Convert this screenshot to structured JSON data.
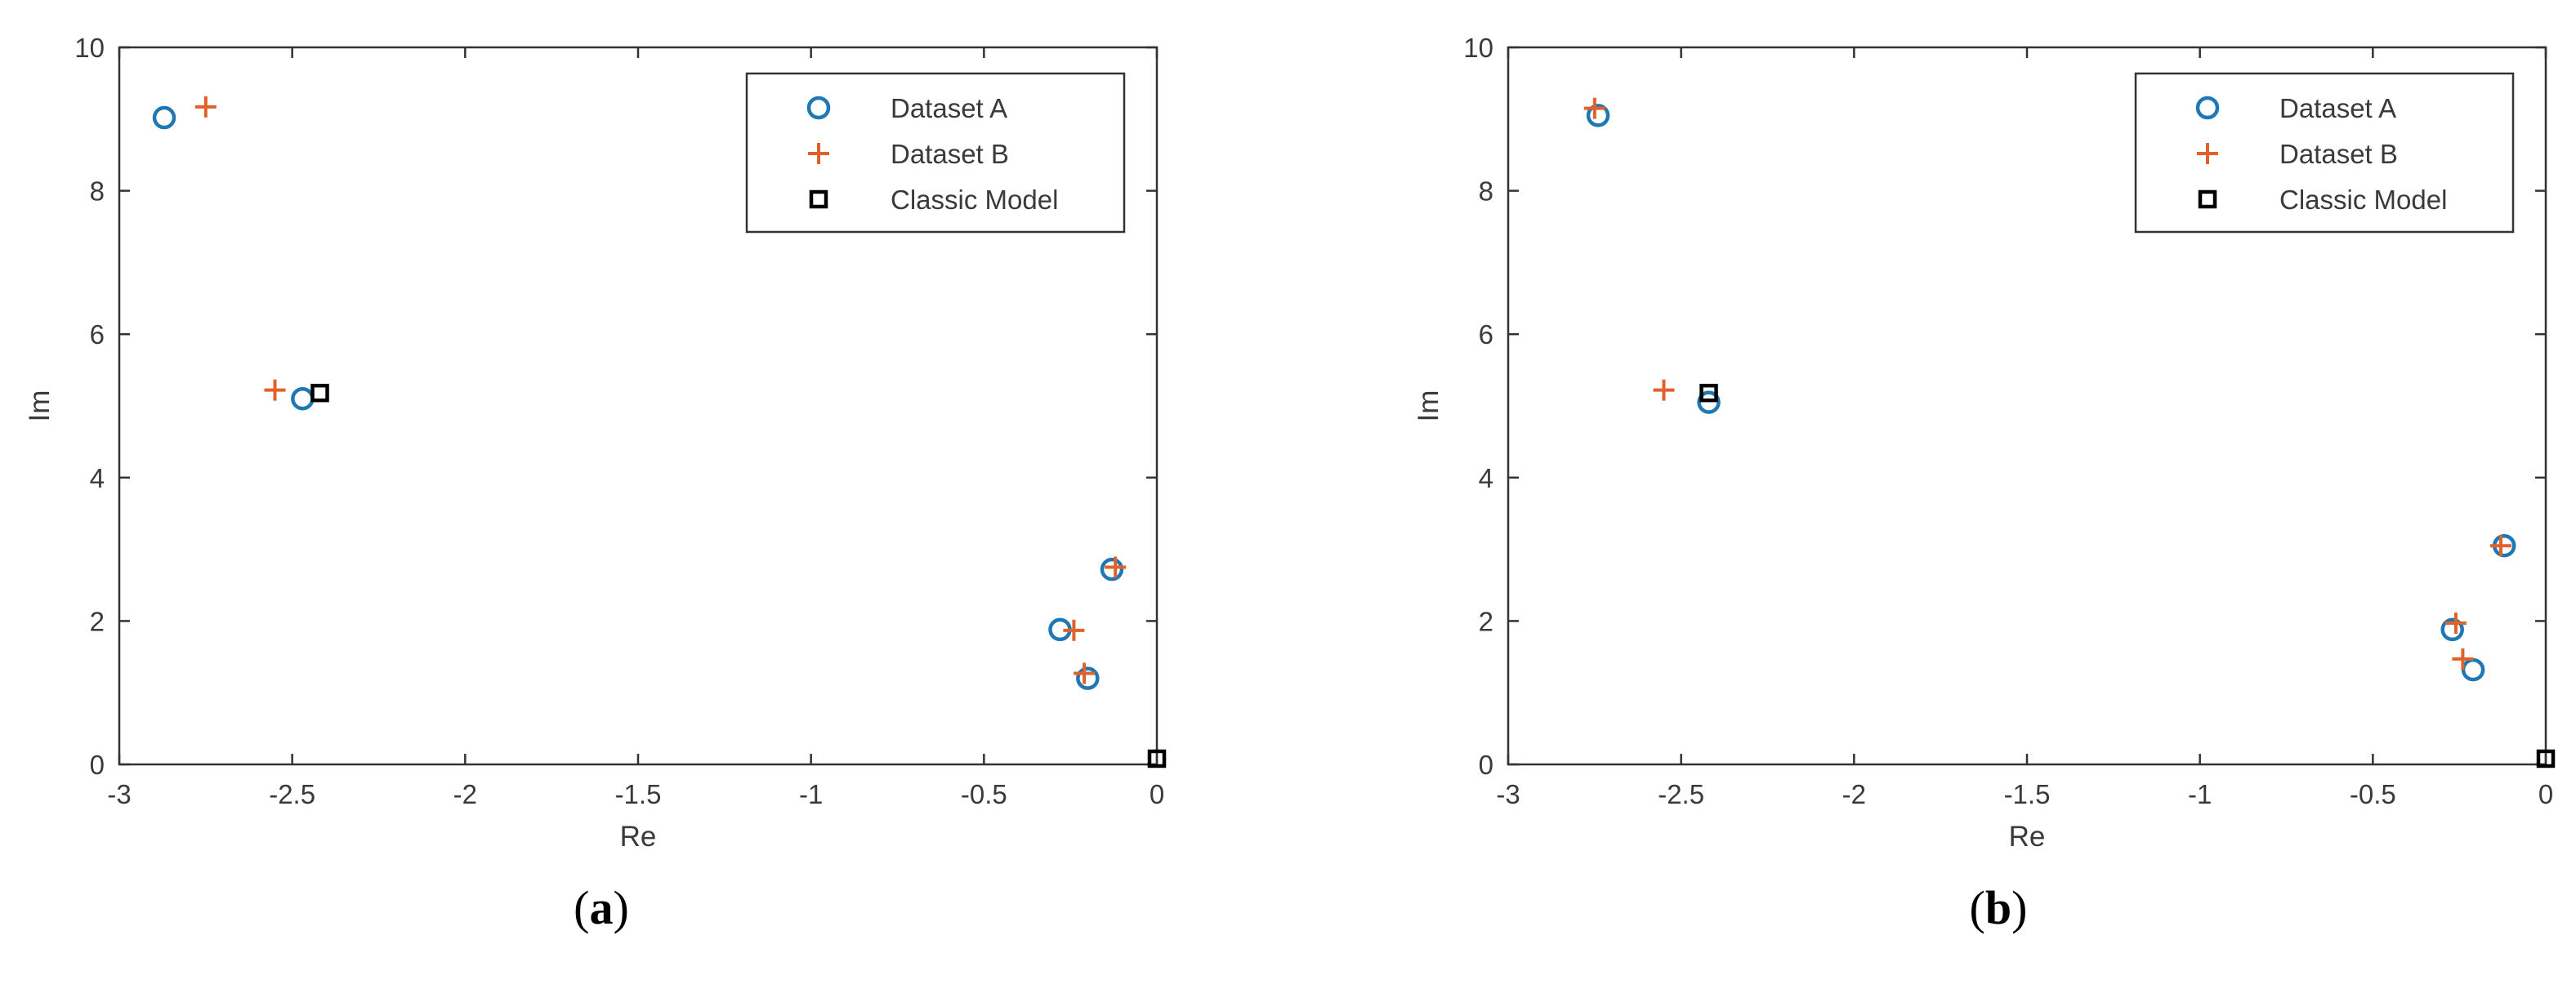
{
  "colors": {
    "dataset_a": "#1f77b4",
    "dataset_b": "#e0622a",
    "classic": "#000000",
    "axis": "#333333"
  },
  "panels": [
    {
      "label_prefix": "(",
      "label_letter": "a",
      "label_suffix": ")"
    },
    {
      "label_prefix": "(",
      "label_letter": "b",
      "label_suffix": ")"
    }
  ],
  "chart_data": [
    {
      "type": "scatter",
      "xlabel": "Re",
      "ylabel": "Im",
      "xlim": [
        -3,
        0
      ],
      "ylim": [
        0,
        10
      ],
      "xticks": [
        "-3",
        "-2.5",
        "-2",
        "-1.5",
        "-1",
        "-0.5",
        "0"
      ],
      "yticks": [
        "0",
        "2",
        "4",
        "6",
        "8",
        "10"
      ],
      "legend_position": "top-right",
      "series": [
        {
          "name": "Dataset A",
          "marker": "circle",
          "points": [
            [
              -2.87,
              9.02
            ],
            [
              -2.47,
              5.1
            ],
            [
              -0.28,
              1.88
            ],
            [
              -0.2,
              1.2
            ],
            [
              -0.13,
              2.72
            ]
          ]
        },
        {
          "name": "Dataset B",
          "marker": "plus",
          "points": [
            [
              -2.75,
              9.17
            ],
            [
              -2.55,
              5.22
            ],
            [
              -0.24,
              1.87
            ],
            [
              -0.21,
              1.27
            ],
            [
              -0.12,
              2.75
            ]
          ]
        },
        {
          "name": "Classic Model",
          "marker": "square",
          "points": [
            [
              -2.42,
              5.18
            ],
            [
              0.0,
              0.08
            ]
          ]
        }
      ]
    },
    {
      "type": "scatter",
      "xlabel": "Re",
      "ylabel": "Im",
      "xlim": [
        -3,
        0
      ],
      "ylim": [
        0,
        10
      ],
      "xticks": [
        "-3",
        "-2.5",
        "-2",
        "-1.5",
        "-1",
        "-0.5",
        "0"
      ],
      "yticks": [
        "0",
        "2",
        "4",
        "6",
        "8",
        "10"
      ],
      "legend_position": "top-right",
      "series": [
        {
          "name": "Dataset A",
          "marker": "circle",
          "points": [
            [
              -2.74,
              9.05
            ],
            [
              -2.42,
              5.05
            ],
            [
              -0.27,
              1.88
            ],
            [
              -0.21,
              1.32
            ],
            [
              -0.12,
              3.05
            ]
          ]
        },
        {
          "name": "Dataset B",
          "marker": "plus",
          "points": [
            [
              -2.75,
              9.15
            ],
            [
              -2.55,
              5.22
            ],
            [
              -0.26,
              1.97
            ],
            [
              -0.24,
              1.47
            ],
            [
              -0.13,
              3.05
            ]
          ]
        },
        {
          "name": "Classic Model",
          "marker": "square",
          "points": [
            [
              -2.42,
              5.18
            ],
            [
              0.0,
              0.08
            ]
          ]
        }
      ]
    }
  ]
}
